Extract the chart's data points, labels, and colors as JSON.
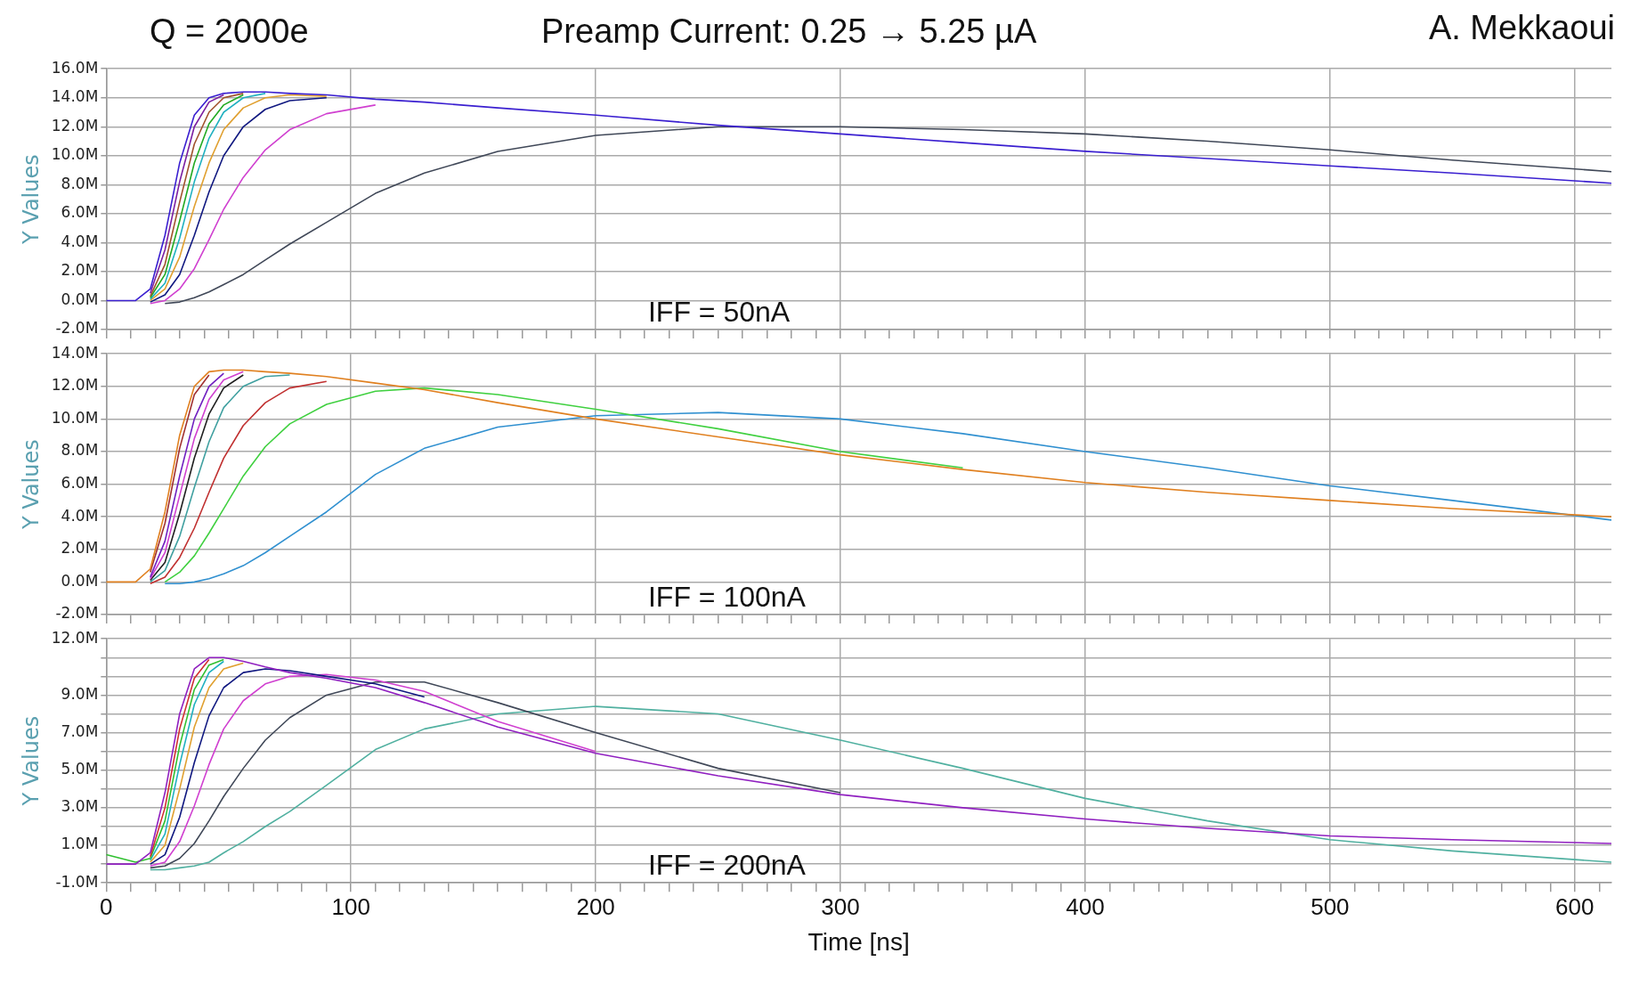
{
  "chart_data": [
    {
      "type": "line",
      "title": "Preamp Current: 0.25 → 5.25 µA",
      "subtitle": "Q = 2000e",
      "ylabel": "Y Values",
      "annotations": [
        "IFF = 50nA",
        "A. Mekkaoui"
      ],
      "grid": true,
      "legend": false,
      "marker": "none",
      "tick_labels": "y",
      "x": [
        0,
        12,
        18,
        24,
        30,
        36,
        42,
        48,
        56,
        65,
        75,
        90,
        110,
        130,
        160,
        200,
        250,
        300,
        350,
        400,
        450,
        500,
        550,
        615
      ],
      "xlim": [
        0,
        615
      ],
      "xticks": [
        0,
        {
          "value": 10,
          "label": null
        },
        {
          "value": 20,
          "label": null
        },
        {
          "value": 30,
          "label": null
        },
        {
          "value": 40,
          "label": null
        },
        {
          "value": 50,
          "label": null
        },
        {
          "value": 60,
          "label": null
        },
        {
          "value": 70,
          "label": null
        },
        {
          "value": 80,
          "label": null
        },
        {
          "value": 90,
          "label": null
        },
        100,
        {
          "value": 110,
          "label": null
        },
        {
          "value": 120,
          "label": null
        },
        {
          "value": 130,
          "label": null
        },
        {
          "value": 140,
          "label": null
        },
        {
          "value": 150,
          "label": null
        },
        {
          "value": 160,
          "label": null
        },
        {
          "value": 170,
          "label": null
        },
        {
          "value": 180,
          "label": null
        },
        {
          "value": 190,
          "label": null
        },
        200,
        {
          "value": 210,
          "label": null
        },
        {
          "value": 220,
          "label": null
        },
        {
          "value": 230,
          "label": null
        },
        {
          "value": 240,
          "label": null
        },
        {
          "value": 250,
          "label": null
        },
        {
          "value": 260,
          "label": null
        },
        {
          "value": 270,
          "label": null
        },
        {
          "value": 280,
          "label": null
        },
        {
          "value": 290,
          "label": null
        },
        300,
        {
          "value": 310,
          "label": null
        },
        {
          "value": 320,
          "label": null
        },
        {
          "value": 330,
          "label": null
        },
        {
          "value": 340,
          "label": null
        },
        {
          "value": 350,
          "label": null
        },
        {
          "value": 360,
          "label": null
        },
        {
          "value": 370,
          "label": null
        },
        {
          "value": 380,
          "label": null
        },
        {
          "value": 390,
          "label": null
        },
        400,
        {
          "value": 410,
          "label": null
        },
        {
          "value": 420,
          "label": null
        },
        {
          "value": 430,
          "label": null
        },
        {
          "value": 440,
          "label": null
        },
        {
          "value": 450,
          "label": null
        },
        {
          "value": 460,
          "label": null
        },
        {
          "value": 470,
          "label": null
        },
        {
          "value": 480,
          "label": null
        },
        {
          "value": 490,
          "label": null
        },
        500,
        {
          "value": 510,
          "label": null
        },
        {
          "value": 520,
          "label": null
        },
        {
          "value": 530,
          "label": null
        },
        {
          "value": 540,
          "label": null
        },
        {
          "value": 550,
          "label": null
        },
        {
          "value": 560,
          "label": null
        },
        {
          "value": 570,
          "label": null
        },
        {
          "value": 580,
          "label": null
        },
        {
          "value": 590,
          "label": null
        },
        600,
        {
          "value": 610,
          "label": null
        }
      ],
      "ylim": [
        -2,
        16
      ],
      "yticks": [
        {
          "value": -2,
          "label": "-2.0M"
        },
        {
          "value": 0,
          "label": "0.0M"
        },
        {
          "value": 2,
          "label": "2.0M"
        },
        {
          "value": 4,
          "label": "4.0M"
        },
        {
          "value": 6,
          "label": "6.0M"
        },
        {
          "value": 8,
          "label": "8.0M"
        },
        {
          "value": 10,
          "label": "10.0M"
        },
        {
          "value": 12,
          "label": "12.0M"
        },
        {
          "value": 14,
          "label": "14.0M"
        },
        {
          "value": 16,
          "label": "16.0M"
        }
      ],
      "series": [
        {
          "color": "#3a1fd0",
          "values": [
            0,
            0,
            0.8,
            4.5,
            9.5,
            12.8,
            14.0,
            14.3,
            14.4,
            14.4,
            14.3,
            14.2,
            13.9,
            13.7,
            13.3,
            12.8,
            12.1,
            11.5,
            10.9,
            10.3,
            9.8,
            9.3,
            8.8,
            8.1
          ]
        },
        {
          "color": "#7b1fa2",
          "values": [
            null,
            null,
            0.5,
            3.5,
            8.2,
            12.0,
            13.7,
            14.2,
            null,
            null,
            null,
            null,
            null,
            null,
            null,
            null,
            null,
            null,
            null,
            null,
            null,
            null,
            null,
            null
          ]
        },
        {
          "color": "#a0522d",
          "values": [
            null,
            null,
            0.3,
            2.5,
            6.8,
            10.8,
            13.0,
            14.0,
            14.3,
            null,
            null,
            null,
            null,
            null,
            null,
            null,
            null,
            null,
            null,
            null,
            null,
            null,
            null,
            null
          ]
        },
        {
          "color": "#22aa22",
          "values": [
            null,
            null,
            0.2,
            1.8,
            5.5,
            9.5,
            12.2,
            13.5,
            14.2,
            null,
            null,
            null,
            null,
            null,
            null,
            null,
            null,
            null,
            null,
            null,
            null,
            null,
            null,
            null
          ]
        },
        {
          "color": "#20b0c0",
          "values": [
            null,
            null,
            0.1,
            1.2,
            4.3,
            8.2,
            11.2,
            13.0,
            14.0,
            14.3,
            null,
            null,
            null,
            null,
            null,
            null,
            null,
            null,
            null,
            null,
            null,
            null,
            null,
            null
          ]
        },
        {
          "color": "#e0a030",
          "values": [
            null,
            null,
            0,
            0.8,
            3.0,
            6.5,
            9.5,
            11.8,
            13.3,
            14.0,
            14.2,
            14.1,
            null,
            null,
            null,
            null,
            null,
            null,
            null,
            null,
            null,
            null,
            null,
            null
          ]
        },
        {
          "color": "#101880",
          "values": [
            null,
            null,
            -0.1,
            0.4,
            1.8,
            4.5,
            7.5,
            10.0,
            12.0,
            13.2,
            13.8,
            14.0,
            null,
            null,
            null,
            null,
            null,
            null,
            null,
            null,
            null,
            null,
            null,
            null
          ]
        },
        {
          "color": "#d040d0",
          "values": [
            null,
            null,
            -0.2,
            0,
            0.8,
            2.2,
            4.2,
            6.3,
            8.5,
            10.4,
            11.8,
            12.9,
            13.5,
            null,
            null,
            null,
            null,
            null,
            null,
            null,
            null,
            null,
            null,
            null
          ]
        },
        {
          "color": "#404858",
          "values": [
            null,
            null,
            null,
            -0.2,
            -0.1,
            0.2,
            0.6,
            1.1,
            1.8,
            2.8,
            3.9,
            5.4,
            7.4,
            8.8,
            10.3,
            11.4,
            12.0,
            12.0,
            11.8,
            11.5,
            11.0,
            10.4,
            9.7,
            8.9
          ]
        }
      ]
    },
    {
      "type": "line",
      "ylabel": "Y Values",
      "annotations": [
        "IFF = 100nA"
      ],
      "grid": true,
      "legend": false,
      "marker": "none",
      "tick_labels": "y",
      "x": [
        0,
        12,
        18,
        24,
        30,
        36,
        42,
        48,
        56,
        65,
        75,
        90,
        110,
        130,
        160,
        200,
        250,
        300,
        350,
        400,
        450,
        500,
        550,
        615
      ],
      "xlim": [
        0,
        615
      ],
      "xticks": [
        0,
        {
          "value": 10,
          "label": null
        },
        {
          "value": 20,
          "label": null
        },
        {
          "value": 30,
          "label": null
        },
        {
          "value": 40,
          "label": null
        },
        {
          "value": 50,
          "label": null
        },
        {
          "value": 60,
          "label": null
        },
        {
          "value": 70,
          "label": null
        },
        {
          "value": 80,
          "label": null
        },
        {
          "value": 90,
          "label": null
        },
        100,
        {
          "value": 110,
          "label": null
        },
        {
          "value": 120,
          "label": null
        },
        {
          "value": 130,
          "label": null
        },
        {
          "value": 140,
          "label": null
        },
        {
          "value": 150,
          "label": null
        },
        {
          "value": 160,
          "label": null
        },
        {
          "value": 170,
          "label": null
        },
        {
          "value": 180,
          "label": null
        },
        {
          "value": 190,
          "label": null
        },
        200,
        {
          "value": 210,
          "label": null
        },
        {
          "value": 220,
          "label": null
        },
        {
          "value": 230,
          "label": null
        },
        {
          "value": 240,
          "label": null
        },
        {
          "value": 250,
          "label": null
        },
        {
          "value": 260,
          "label": null
        },
        {
          "value": 270,
          "label": null
        },
        {
          "value": 280,
          "label": null
        },
        {
          "value": 290,
          "label": null
        },
        300,
        {
          "value": 310,
          "label": null
        },
        {
          "value": 320,
          "label": null
        },
        {
          "value": 330,
          "label": null
        },
        {
          "value": 340,
          "label": null
        },
        {
          "value": 350,
          "label": null
        },
        {
          "value": 360,
          "label": null
        },
        {
          "value": 370,
          "label": null
        },
        {
          "value": 380,
          "label": null
        },
        {
          "value": 390,
          "label": null
        },
        400,
        {
          "value": 410,
          "label": null
        },
        {
          "value": 420,
          "label": null
        },
        {
          "value": 430,
          "label": null
        },
        {
          "value": 440,
          "label": null
        },
        {
          "value": 450,
          "label": null
        },
        {
          "value": 460,
          "label": null
        },
        {
          "value": 470,
          "label": null
        },
        {
          "value": 480,
          "label": null
        },
        {
          "value": 490,
          "label": null
        },
        500,
        {
          "value": 510,
          "label": null
        },
        {
          "value": 520,
          "label": null
        },
        {
          "value": 530,
          "label": null
        },
        {
          "value": 540,
          "label": null
        },
        {
          "value": 550,
          "label": null
        },
        {
          "value": 560,
          "label": null
        },
        {
          "value": 570,
          "label": null
        },
        {
          "value": 580,
          "label": null
        },
        {
          "value": 590,
          "label": null
        },
        600,
        {
          "value": 610,
          "label": null
        }
      ],
      "ylim": [
        -2,
        14
      ],
      "yticks": [
        {
          "value": -2,
          "label": "-2.0M"
        },
        {
          "value": 0,
          "label": "0.0M"
        },
        {
          "value": 2,
          "label": "2.0M"
        },
        {
          "value": 4,
          "label": "4.0M"
        },
        {
          "value": 6,
          "label": "6.0M"
        },
        {
          "value": 8,
          "label": "8.0M"
        },
        {
          "value": 10,
          "label": "10.0M"
        },
        {
          "value": 12,
          "label": "12.0M"
        },
        {
          "value": 14,
          "label": "14.0M"
        }
      ],
      "series": [
        {
          "color": "#e08020",
          "values": [
            0,
            0,
            0.8,
            4.3,
            9.0,
            12.0,
            12.9,
            13.0,
            13.0,
            12.9,
            12.8,
            12.6,
            12.2,
            11.8,
            11.0,
            10.0,
            8.9,
            7.8,
            6.9,
            6.1,
            5.5,
            5.0,
            4.5,
            4.0
          ]
        },
        {
          "color": "#a03030",
          "values": [
            null,
            null,
            0.6,
            3.6,
            8.2,
            11.5,
            12.7,
            null,
            null,
            null,
            null,
            null,
            null,
            null,
            null,
            null,
            null,
            null,
            null,
            null,
            null,
            null,
            null,
            null
          ]
        },
        {
          "color": "#7020c0",
          "values": [
            null,
            null,
            0.3,
            2.5,
            6.5,
            10.0,
            12.0,
            12.8,
            null,
            null,
            null,
            null,
            null,
            null,
            null,
            null,
            null,
            null,
            null,
            null,
            null,
            null,
            null,
            null
          ]
        },
        {
          "color": "#d040d0",
          "values": [
            null,
            null,
            0.2,
            1.8,
            5.3,
            8.8,
            11.2,
            12.4,
            12.9,
            null,
            null,
            null,
            null,
            null,
            null,
            null,
            null,
            null,
            null,
            null,
            null,
            null,
            null,
            null
          ]
        },
        {
          "color": "#202020",
          "values": [
            null,
            null,
            0.1,
            1.2,
            4.2,
            7.6,
            10.3,
            11.9,
            12.7,
            null,
            null,
            null,
            null,
            null,
            null,
            null,
            null,
            null,
            null,
            null,
            null,
            null,
            null,
            null
          ]
        },
        {
          "color": "#40a0a0",
          "values": [
            null,
            null,
            0,
            0.7,
            2.8,
            5.8,
            8.6,
            10.7,
            12.0,
            12.6,
            12.7,
            null,
            null,
            null,
            null,
            null,
            null,
            null,
            null,
            null,
            null,
            null,
            null,
            null
          ]
        },
        {
          "color": "#c03030",
          "values": [
            null,
            null,
            -0.1,
            0.3,
            1.5,
            3.3,
            5.5,
            7.6,
            9.6,
            11.0,
            11.9,
            12.3,
            null,
            null,
            null,
            null,
            null,
            null,
            null,
            null,
            null,
            null,
            null,
            null
          ]
        },
        {
          "color": "#40d040",
          "values": [
            null,
            null,
            null,
            0,
            0.6,
            1.6,
            3.0,
            4.5,
            6.5,
            8.3,
            9.7,
            10.9,
            11.7,
            11.9,
            11.5,
            10.6,
            9.4,
            8.0,
            7.0,
            null,
            null,
            null,
            null,
            null
          ]
        },
        {
          "color": "#3090d0",
          "values": [
            null,
            null,
            null,
            -0.1,
            -0.1,
            0,
            0.2,
            0.5,
            1.0,
            1.8,
            2.8,
            4.3,
            6.6,
            8.2,
            9.5,
            10.2,
            10.4,
            10.0,
            9.1,
            8.0,
            7.0,
            5.9,
            5.0,
            3.8
          ]
        }
      ]
    },
    {
      "type": "line",
      "xlabel": "Time [ns]",
      "ylabel": "Y Values",
      "annotations": [
        "IFF = 200nA"
      ],
      "grid": true,
      "legend": false,
      "marker": "none",
      "x": [
        0,
        12,
        18,
        24,
        30,
        36,
        42,
        48,
        56,
        65,
        75,
        90,
        110,
        130,
        160,
        200,
        250,
        300,
        350,
        400,
        450,
        500,
        550,
        615
      ],
      "xlim": [
        0,
        615
      ],
      "xticks": [
        0,
        {
          "value": 10,
          "label": null
        },
        {
          "value": 20,
          "label": null
        },
        {
          "value": 30,
          "label": null
        },
        {
          "value": 40,
          "label": null
        },
        {
          "value": 50,
          "label": null
        },
        {
          "value": 60,
          "label": null
        },
        {
          "value": 70,
          "label": null
        },
        {
          "value": 80,
          "label": null
        },
        {
          "value": 90,
          "label": null
        },
        100,
        {
          "value": 110,
          "label": null
        },
        {
          "value": 120,
          "label": null
        },
        {
          "value": 130,
          "label": null
        },
        {
          "value": 140,
          "label": null
        },
        {
          "value": 150,
          "label": null
        },
        {
          "value": 160,
          "label": null
        },
        {
          "value": 170,
          "label": null
        },
        {
          "value": 180,
          "label": null
        },
        {
          "value": 190,
          "label": null
        },
        200,
        {
          "value": 210,
          "label": null
        },
        {
          "value": 220,
          "label": null
        },
        {
          "value": 230,
          "label": null
        },
        {
          "value": 240,
          "label": null
        },
        {
          "value": 250,
          "label": null
        },
        {
          "value": 260,
          "label": null
        },
        {
          "value": 270,
          "label": null
        },
        {
          "value": 280,
          "label": null
        },
        {
          "value": 290,
          "label": null
        },
        300,
        {
          "value": 310,
          "label": null
        },
        {
          "value": 320,
          "label": null
        },
        {
          "value": 330,
          "label": null
        },
        {
          "value": 340,
          "label": null
        },
        {
          "value": 350,
          "label": null
        },
        {
          "value": 360,
          "label": null
        },
        {
          "value": 370,
          "label": null
        },
        {
          "value": 380,
          "label": null
        },
        {
          "value": 390,
          "label": null
        },
        400,
        {
          "value": 410,
          "label": null
        },
        {
          "value": 420,
          "label": null
        },
        {
          "value": 430,
          "label": null
        },
        {
          "value": 440,
          "label": null
        },
        {
          "value": 450,
          "label": null
        },
        {
          "value": 460,
          "label": null
        },
        {
          "value": 470,
          "label": null
        },
        {
          "value": 480,
          "label": null
        },
        {
          "value": 490,
          "label": null
        },
        500,
        {
          "value": 510,
          "label": null
        },
        {
          "value": 520,
          "label": null
        },
        {
          "value": 530,
          "label": null
        },
        {
          "value": 540,
          "label": null
        },
        {
          "value": 550,
          "label": null
        },
        {
          "value": 560,
          "label": null
        },
        {
          "value": 570,
          "label": null
        },
        {
          "value": 580,
          "label": null
        },
        {
          "value": 590,
          "label": null
        },
        600,
        {
          "value": 610,
          "label": null
        }
      ],
      "ylim": [
        -1,
        12
      ],
      "yticks": [
        {
          "value": -1,
          "label": "-1.0M"
        },
        {
          "value": 0,
          "label": null
        },
        {
          "value": 1,
          "label": "1.0M"
        },
        {
          "value": 2,
          "label": null
        },
        {
          "value": 3,
          "label": "3.0M"
        },
        {
          "value": 4,
          "label": null
        },
        {
          "value": 5,
          "label": "5.0M"
        },
        {
          "value": 6,
          "label": null
        },
        {
          "value": 7,
          "label": "7.0M"
        },
        {
          "value": 8,
          "label": null
        },
        {
          "value": 9,
          "label": "9.0M"
        },
        {
          "value": 10,
          "label": null
        },
        {
          "value": 11,
          "label": null
        },
        {
          "value": 12,
          "label": "12.0M"
        }
      ],
      "series": [
        {
          "color": "#9020c0",
          "values": [
            0,
            0,
            0.6,
            3.8,
            8.0,
            10.4,
            11.0,
            11.0,
            10.8,
            10.5,
            10.2,
            9.9,
            9.4,
            8.6,
            7.3,
            5.9,
            4.7,
            3.7,
            3.0,
            2.4,
            1.9,
            1.5,
            1.3,
            1.1
          ]
        },
        {
          "color": "#d03030",
          "values": [
            null,
            null,
            0.4,
            3.0,
            7.2,
            9.9,
            10.9,
            null,
            null,
            null,
            null,
            null,
            null,
            null,
            null,
            null,
            null,
            null,
            null,
            null,
            null,
            null,
            null,
            null
          ]
        },
        {
          "color": "#30c030",
          "values": [
            0.5,
            0.1,
            0.3,
            2.3,
            6.3,
            9.3,
            10.6,
            10.9,
            null,
            null,
            null,
            null,
            null,
            null,
            null,
            null,
            null,
            null,
            null,
            null,
            null,
            null,
            null,
            null
          ]
        },
        {
          "color": "#20b0c0",
          "values": [
            null,
            null,
            0.2,
            1.6,
            5.3,
            8.5,
            10.2,
            10.8,
            null,
            null,
            null,
            null,
            null,
            null,
            null,
            null,
            null,
            null,
            null,
            null,
            null,
            null,
            null,
            null
          ]
        },
        {
          "color": "#e0a030",
          "values": [
            null,
            null,
            0.1,
            1.0,
            4.0,
            7.3,
            9.4,
            10.4,
            10.7,
            null,
            null,
            null,
            null,
            null,
            null,
            null,
            null,
            null,
            null,
            null,
            null,
            null,
            null,
            null
          ]
        },
        {
          "color": "#101880",
          "values": [
            null,
            null,
            0,
            0.5,
            2.5,
            5.4,
            7.9,
            9.4,
            10.2,
            10.4,
            10.3,
            10.0,
            9.6,
            8.9,
            null,
            null,
            null,
            null,
            null,
            null,
            null,
            null,
            null,
            null
          ]
        },
        {
          "color": "#d040d0",
          "values": [
            null,
            null,
            -0.1,
            0.1,
            1.2,
            3.1,
            5.3,
            7.2,
            8.7,
            9.6,
            10.0,
            10.1,
            9.8,
            9.2,
            7.6,
            6.0,
            null,
            null,
            null,
            null,
            null,
            null,
            null,
            null
          ]
        },
        {
          "color": "#404858",
          "values": [
            null,
            null,
            -0.2,
            -0.1,
            0.3,
            1.1,
            2.3,
            3.6,
            5.1,
            6.6,
            7.8,
            9.0,
            9.7,
            9.7,
            8.6,
            7.0,
            5.1,
            3.8,
            null,
            null,
            null,
            null,
            null,
            null
          ]
        },
        {
          "color": "#50b0a0",
          "values": [
            null,
            null,
            -0.3,
            -0.3,
            -0.2,
            -0.1,
            0.1,
            0.6,
            1.2,
            2.0,
            2.8,
            4.2,
            6.1,
            7.2,
            8.0,
            8.4,
            8.0,
            6.6,
            5.1,
            3.5,
            2.3,
            1.3,
            0.7,
            0.1
          ]
        }
      ]
    }
  ]
}
